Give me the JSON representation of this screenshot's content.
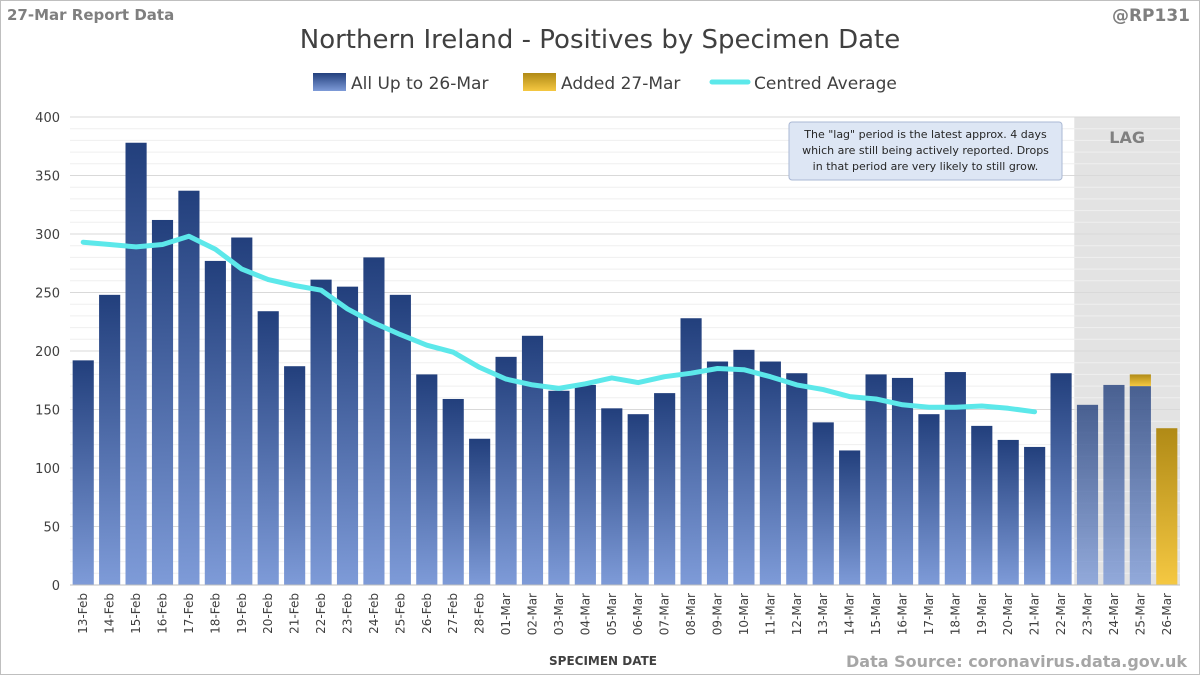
{
  "header": {
    "report_label": "27-Mar Report Data",
    "handle": "@RP131"
  },
  "footer": {
    "source": "Data Source: coronavirus.data.gov.uk"
  },
  "annotations": {
    "lag_label": "LAG",
    "note_lines": [
      "The \"lag\" period is the latest approx. 4 days",
      "which are still being actively reported. Drops",
      "in that period are very likely to still grow."
    ]
  },
  "colors": {
    "bar_top": "#223f7c",
    "bar_bottom": "#7e9bd8",
    "added_top": "#b08a16",
    "added_bottom": "#f5c842",
    "average_line": "#5ce8ea",
    "lag_shade": "#d9d9d9",
    "note_bg": "#dde6f4",
    "gridline": "#d9d9d9"
  },
  "chart_data": {
    "type": "bar",
    "title": "Northern Ireland - Positives by Specimen Date",
    "xlabel": "SPECIMEN DATE",
    "ylabel": "",
    "ylim": [
      0,
      400
    ],
    "yticks": [
      0,
      50,
      100,
      150,
      200,
      250,
      300,
      350,
      400
    ],
    "grid": true,
    "legend_position": "top",
    "stacked": true,
    "lag_start_category": "23-Mar",
    "categories": [
      "13-Feb",
      "14-Feb",
      "15-Feb",
      "16-Feb",
      "17-Feb",
      "18-Feb",
      "19-Feb",
      "20-Feb",
      "21-Feb",
      "22-Feb",
      "23-Feb",
      "24-Feb",
      "25-Feb",
      "26-Feb",
      "27-Feb",
      "28-Feb",
      "01-Mar",
      "02-Mar",
      "03-Mar",
      "04-Mar",
      "05-Mar",
      "06-Mar",
      "07-Mar",
      "08-Mar",
      "09-Mar",
      "10-Mar",
      "11-Mar",
      "12-Mar",
      "13-Mar",
      "14-Mar",
      "15-Mar",
      "16-Mar",
      "17-Mar",
      "18-Mar",
      "19-Mar",
      "20-Mar",
      "21-Mar",
      "22-Mar",
      "23-Mar",
      "24-Mar",
      "25-Mar",
      "26-Mar"
    ],
    "series": [
      {
        "name": "All Up to 26-Mar",
        "kind": "bar",
        "values": [
          192,
          248,
          378,
          312,
          337,
          277,
          297,
          234,
          187,
          261,
          255,
          280,
          248,
          180,
          159,
          125,
          195,
          213,
          166,
          171,
          151,
          146,
          164,
          228,
          191,
          201,
          191,
          181,
          139,
          115,
          180,
          177,
          146,
          182,
          136,
          124,
          118,
          181,
          154,
          171,
          170,
          0
        ]
      },
      {
        "name": "Added 27-Mar",
        "kind": "bar",
        "values": [
          0,
          0,
          0,
          0,
          0,
          0,
          0,
          0,
          0,
          0,
          0,
          0,
          0,
          0,
          0,
          0,
          0,
          0,
          0,
          0,
          0,
          0,
          0,
          0,
          0,
          0,
          0,
          0,
          0,
          0,
          0,
          0,
          0,
          0,
          0,
          0,
          0,
          0,
          0,
          0,
          10,
          134
        ]
      },
      {
        "name": "Centred Average",
        "kind": "line",
        "values": [
          293,
          291,
          289,
          291,
          298,
          287,
          270,
          261,
          256,
          252,
          236,
          224,
          214,
          205,
          199,
          186,
          176,
          171,
          168,
          172,
          177,
          173,
          178,
          181,
          185,
          184,
          178,
          171,
          167,
          161,
          159,
          154,
          152,
          152,
          153,
          151,
          148,
          null,
          null,
          null,
          null,
          null
        ]
      }
    ]
  }
}
